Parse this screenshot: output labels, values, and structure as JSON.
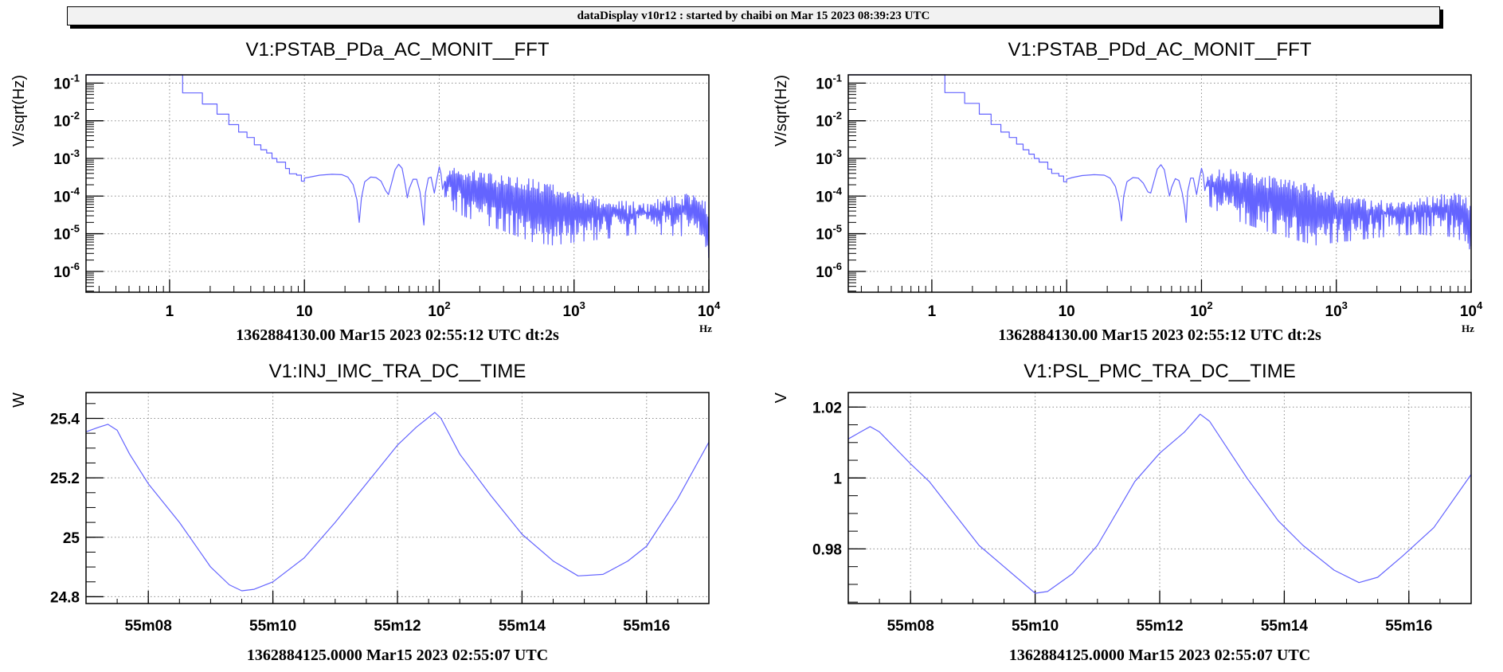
{
  "header": {
    "title": "dataDisplay v10r12 : started by chaibi on Mar 15 2023 08:39:23 UTC"
  },
  "colors": {
    "trace": "#6464ff",
    "frame": "#000000",
    "grid": "#8c8c8c",
    "header_bg": "#f2f2f2"
  },
  "chart_data": [
    {
      "type": "line",
      "title": "V1:PSTAB_PDa_AC_MONIT__FFT",
      "ylabel": "V/sqrt(Hz)",
      "xlabel": "Hz",
      "footer": "1362884130.00 Mar15 2023 02:55:12 UTC dt:2s",
      "xscale": "log",
      "yscale": "log",
      "grid": true,
      "xlim": [
        0.24,
        10000
      ],
      "ylim": [
        2.8e-07,
        0.166
      ],
      "xticks": [
        {
          "v": 1,
          "base": "1",
          "exp": ""
        },
        {
          "v": 10,
          "base": "10",
          "exp": ""
        },
        {
          "v": 100,
          "base": "10",
          "exp": "2"
        },
        {
          "v": 1000,
          "base": "10",
          "exp": "3"
        },
        {
          "v": 10000,
          "base": "10",
          "exp": "4"
        }
      ],
      "yticks": [
        {
          "v": 0.1,
          "base": "10",
          "exp": "-1"
        },
        {
          "v": 0.01,
          "base": "10",
          "exp": "-2"
        },
        {
          "v": 0.001,
          "base": "10",
          "exp": "-3"
        },
        {
          "v": 0.0001,
          "base": "10",
          "exp": "-4"
        },
        {
          "v": 1e-05,
          "base": "10",
          "exp": "-5"
        },
        {
          "v": 1e-06,
          "base": "10",
          "exp": "-6"
        }
      ],
      "steps": [
        [
          0.24,
          0.17
        ],
        [
          1.25,
          0.055
        ],
        [
          1.75,
          0.028
        ],
        [
          2.25,
          0.015
        ],
        [
          2.75,
          0.0079
        ],
        [
          3.25,
          0.005
        ],
        [
          3.75,
          0.0036
        ],
        [
          4.25,
          0.0023
        ],
        [
          4.75,
          0.0017
        ],
        [
          5.25,
          0.0014
        ],
        [
          5.75,
          0.001
        ],
        [
          6.25,
          0.0008
        ],
        [
          7.25,
          0.00054
        ],
        [
          7.75,
          0.00039
        ],
        [
          8.75,
          0.00036
        ],
        [
          9.5,
          0.00025
        ]
      ],
      "points": [
        [
          10,
          0.0003
        ],
        [
          11,
          0.00032
        ],
        [
          13,
          0.00036
        ],
        [
          16,
          0.00038
        ],
        [
          19,
          0.00037
        ],
        [
          21,
          0.00032
        ],
        [
          23,
          0.0002
        ],
        [
          24.5,
          8e-05
        ],
        [
          25.5,
          2e-05
        ],
        [
          26.5,
          9e-05
        ],
        [
          28,
          0.00024
        ],
        [
          31,
          0.00032
        ],
        [
          34,
          0.00031
        ],
        [
          37,
          0.00025
        ],
        [
          40,
          0.00014
        ],
        [
          42,
          0.00011
        ],
        [
          44,
          0.0002
        ],
        [
          47,
          0.0005
        ],
        [
          50,
          0.0007
        ],
        [
          53,
          0.00055
        ],
        [
          56,
          0.0002
        ],
        [
          58,
          9e-05
        ],
        [
          60,
          0.00016
        ],
        [
          64,
          0.00028
        ],
        [
          68,
          0.00028
        ],
        [
          72,
          0.00013
        ],
        [
          75,
          4e-05
        ],
        [
          77,
          1.7e-05
        ],
        [
          79,
          0.00012
        ],
        [
          83,
          0.0003
        ],
        [
          87,
          0.00032
        ],
        [
          92,
          0.00012
        ],
        [
          96,
          0.00028
        ],
        [
          100,
          0.0006
        ],
        [
          103,
          0.0004
        ],
        [
          106,
          0.00015
        ],
        [
          110,
          0.00025
        ]
      ],
      "noise_envelope": {
        "f": [
          110,
          150,
          200,
          300,
          500,
          700,
          1000,
          1500,
          2000,
          3000,
          4000,
          5000,
          6000,
          8000,
          9000,
          10000
        ],
        "upper": [
          0.0005,
          0.0006,
          0.00045,
          0.00035,
          0.0003,
          0.0002,
          0.00014,
          0.0001,
          8e-05,
          7e-05,
          8e-05,
          0.0001,
          0.00011,
          0.00012,
          0.0001,
          5e-05
        ],
        "lower": [
          6e-05,
          3e-05,
          2e-05,
          1.2e-05,
          6e-06,
          5e-06,
          6e-06,
          7e-06,
          8e-06,
          1e-05,
          1e-05,
          9e-06,
          9e-06,
          8e-06,
          4e-06,
          1.2e-06
        ]
      }
    },
    {
      "type": "line",
      "title": "V1:PSTAB_PDd_AC_MONIT__FFT",
      "ylabel": "V/sqrt(Hz)",
      "xlabel": "Hz",
      "footer": "1362884130.00 Mar15 2023 02:55:12 UTC dt:2s",
      "xscale": "log",
      "yscale": "log",
      "grid": true,
      "xlim": [
        0.24,
        10000
      ],
      "ylim": [
        2.8e-07,
        0.166
      ],
      "xticks": [
        {
          "v": 1,
          "base": "1",
          "exp": ""
        },
        {
          "v": 10,
          "base": "10",
          "exp": ""
        },
        {
          "v": 100,
          "base": "10",
          "exp": "2"
        },
        {
          "v": 1000,
          "base": "10",
          "exp": "3"
        },
        {
          "v": 10000,
          "base": "10",
          "exp": "4"
        }
      ],
      "yticks": [
        {
          "v": 0.1,
          "base": "10",
          "exp": "-1"
        },
        {
          "v": 0.01,
          "base": "10",
          "exp": "-2"
        },
        {
          "v": 0.001,
          "base": "10",
          "exp": "-3"
        },
        {
          "v": 0.0001,
          "base": "10",
          "exp": "-4"
        },
        {
          "v": 1e-05,
          "base": "10",
          "exp": "-5"
        },
        {
          "v": 1e-06,
          "base": "10",
          "exp": "-6"
        }
      ],
      "steps": [
        [
          0.24,
          0.17
        ],
        [
          1.25,
          0.056
        ],
        [
          1.75,
          0.029
        ],
        [
          2.25,
          0.015
        ],
        [
          2.75,
          0.008
        ],
        [
          3.25,
          0.005
        ],
        [
          3.75,
          0.0036
        ],
        [
          4.25,
          0.0024
        ],
        [
          4.75,
          0.0017
        ],
        [
          5.25,
          0.0013
        ],
        [
          5.75,
          0.001
        ],
        [
          6.25,
          0.0008
        ],
        [
          7.25,
          0.00052
        ],
        [
          7.75,
          0.0004
        ],
        [
          8.75,
          0.00034
        ],
        [
          9.5,
          0.00024
        ]
      ],
      "points": [
        [
          10,
          0.00028
        ],
        [
          11,
          0.00031
        ],
        [
          13,
          0.00035
        ],
        [
          16,
          0.00037
        ],
        [
          19,
          0.00036
        ],
        [
          21,
          0.0003
        ],
        [
          23,
          0.00018
        ],
        [
          24.5,
          7e-05
        ],
        [
          25.5,
          2.2e-05
        ],
        [
          26.5,
          0.0001
        ],
        [
          28,
          0.00024
        ],
        [
          31,
          0.00031
        ],
        [
          34,
          0.0003
        ],
        [
          37,
          0.00022
        ],
        [
          40,
          0.00013
        ],
        [
          42,
          0.00012
        ],
        [
          44,
          0.00022
        ],
        [
          47,
          0.00052
        ],
        [
          50,
          0.00068
        ],
        [
          53,
          0.0005
        ],
        [
          56,
          0.00018
        ],
        [
          58,
          0.0001
        ],
        [
          60,
          0.00017
        ],
        [
          64,
          0.00029
        ],
        [
          68,
          0.00026
        ],
        [
          72,
          0.00012
        ],
        [
          75,
          5e-05
        ],
        [
          77,
          2e-05
        ],
        [
          79,
          0.00013
        ],
        [
          83,
          0.0003
        ],
        [
          87,
          0.0003
        ],
        [
          92,
          0.00011
        ],
        [
          96,
          0.00027
        ],
        [
          100,
          0.00055
        ],
        [
          103,
          0.00038
        ],
        [
          106,
          0.00014
        ],
        [
          110,
          0.00024
        ]
      ],
      "noise_envelope": {
        "f": [
          110,
          150,
          200,
          300,
          500,
          700,
          1000,
          1500,
          2000,
          3000,
          4000,
          5000,
          6000,
          8000,
          9000,
          10000
        ],
        "upper": [
          0.0005,
          0.00055,
          0.00045,
          0.00035,
          0.00028,
          0.0002,
          0.00013,
          0.0001,
          8e-05,
          7e-05,
          9e-05,
          0.00011,
          0.00011,
          0.00012,
          0.0001,
          5e-05
        ],
        "lower": [
          6e-05,
          3e-05,
          2e-05,
          1.2e-05,
          7e-06,
          5e-06,
          6e-06,
          7e-06,
          8e-06,
          9e-06,
          1e-05,
          9e-06,
          9e-06,
          8e-06,
          4e-06,
          1.2e-06
        ]
      }
    },
    {
      "type": "line",
      "title": "V1:INJ_IMC_TRA_DC__TIME",
      "ylabel": "W",
      "footer": "1362884125.0000 Mar15 2023 02:55:07 UTC",
      "xscale": "linear",
      "yscale": "linear",
      "grid": true,
      "xlim": [
        7,
        17
      ],
      "ylim": [
        24.777,
        25.487
      ],
      "x_minor_step": 0.5,
      "y_minor_step": 0.05,
      "xticks": [
        {
          "v": 8,
          "base": "55m08"
        },
        {
          "v": 10,
          "base": "55m10"
        },
        {
          "v": 12,
          "base": "55m12"
        },
        {
          "v": 14,
          "base": "55m14"
        },
        {
          "v": 16,
          "base": "55m16"
        }
      ],
      "yticks": [
        {
          "v": 24.8,
          "base": "24.8"
        },
        {
          "v": 25,
          "base": "25"
        },
        {
          "v": 25.2,
          "base": "25.2"
        },
        {
          "v": 25.4,
          "base": "25.4"
        }
      ],
      "points": [
        [
          7.0,
          25.355
        ],
        [
          7.2,
          25.37
        ],
        [
          7.35,
          25.38
        ],
        [
          7.5,
          25.36
        ],
        [
          7.7,
          25.28
        ],
        [
          8.0,
          25.18
        ],
        [
          8.5,
          25.05
        ],
        [
          9.0,
          24.9
        ],
        [
          9.3,
          24.84
        ],
        [
          9.5,
          24.82
        ],
        [
          9.7,
          24.825
        ],
        [
          10.0,
          24.85
        ],
        [
          10.5,
          24.93
        ],
        [
          11.0,
          25.05
        ],
        [
          11.5,
          25.18
        ],
        [
          12.0,
          25.31
        ],
        [
          12.3,
          25.37
        ],
        [
          12.6,
          25.42
        ],
        [
          12.7,
          25.4
        ],
        [
          13.0,
          25.28
        ],
        [
          13.5,
          25.14
        ],
        [
          14.0,
          25.01
        ],
        [
          14.5,
          24.92
        ],
        [
          14.9,
          24.87
        ],
        [
          15.3,
          24.875
        ],
        [
          15.7,
          24.92
        ],
        [
          16.0,
          24.97
        ],
        [
          16.5,
          25.13
        ],
        [
          17.0,
          25.32
        ]
      ]
    },
    {
      "type": "line",
      "title": "V1:PSL_PMC_TRA_DC__TIME",
      "ylabel": "V",
      "footer": "1362884125.0000 Mar15 2023 02:55:07 UTC",
      "xscale": "linear",
      "yscale": "linear",
      "grid": true,
      "xlim": [
        7,
        17
      ],
      "ylim": [
        0.9646,
        1.0241
      ],
      "x_minor_step": 0.5,
      "y_minor_step": 0.005,
      "xticks": [
        {
          "v": 8,
          "base": "55m08"
        },
        {
          "v": 10,
          "base": "55m10"
        },
        {
          "v": 12,
          "base": "55m12"
        },
        {
          "v": 14,
          "base": "55m14"
        },
        {
          "v": 16,
          "base": "55m16"
        }
      ],
      "yticks": [
        {
          "v": 0.98,
          "base": "0.98"
        },
        {
          "v": 1,
          "base": "1"
        },
        {
          "v": 1.02,
          "base": "1.02"
        }
      ],
      "points": [
        [
          7.0,
          1.011
        ],
        [
          7.2,
          1.013
        ],
        [
          7.35,
          1.0145
        ],
        [
          7.5,
          1.013
        ],
        [
          8.0,
          1.004
        ],
        [
          8.3,
          0.999
        ],
        [
          8.7,
          0.99
        ],
        [
          9.1,
          0.981
        ],
        [
          9.5,
          0.975
        ],
        [
          10.0,
          0.9675
        ],
        [
          10.2,
          0.968
        ],
        [
          10.6,
          0.973
        ],
        [
          11.0,
          0.981
        ],
        [
          11.3,
          0.99
        ],
        [
          11.6,
          0.999
        ],
        [
          12.0,
          1.007
        ],
        [
          12.4,
          1.013
        ],
        [
          12.65,
          1.018
        ],
        [
          12.8,
          1.016
        ],
        [
          13.4,
          1.0
        ],
        [
          13.9,
          0.988
        ],
        [
          14.3,
          0.981
        ],
        [
          14.8,
          0.974
        ],
        [
          15.2,
          0.9705
        ],
        [
          15.5,
          0.972
        ],
        [
          15.9,
          0.978
        ],
        [
          16.4,
          0.986
        ],
        [
          17.0,
          1.001
        ]
      ]
    }
  ]
}
